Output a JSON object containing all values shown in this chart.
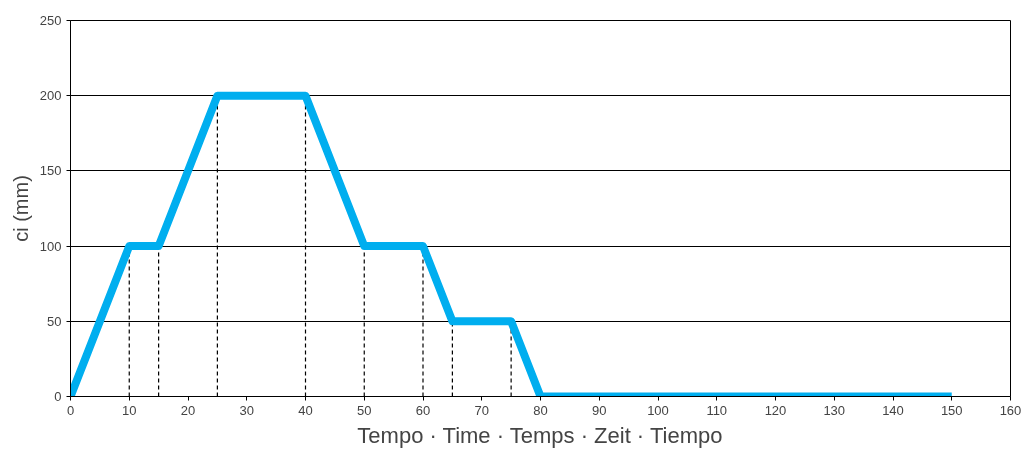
{
  "chart_data": {
    "type": "line",
    "ylabel": "ci (mm)",
    "xlabel": "Tempo · Time · Temps · Zeit · Tiempo",
    "x": [
      0,
      10,
      15,
      25,
      40,
      50,
      60,
      65,
      75,
      80,
      150
    ],
    "series": [
      {
        "color": "#00aeef",
        "values": [
          0,
          100,
          100,
          200,
          200,
          100,
          100,
          50,
          50,
          0,
          0
        ]
      }
    ],
    "xlim": [
      0,
      160
    ],
    "xticks": [
      0,
      10,
      20,
      30,
      40,
      50,
      60,
      70,
      80,
      90,
      100,
      110,
      120,
      130,
      140,
      150,
      160
    ],
    "ylim": [
      0,
      250
    ],
    "yticks": [
      0,
      50,
      100,
      150,
      200,
      250
    ],
    "grid": "y",
    "marker": "none",
    "line_style": "solid",
    "ref_lines": [
      {
        "axis": "x",
        "value": 10,
        "line_style": "dashed",
        "color": "#000000"
      },
      {
        "axis": "x",
        "value": 15,
        "line_style": "dashed",
        "color": "#000000"
      },
      {
        "axis": "x",
        "value": 25,
        "line_style": "dashed",
        "color": "#000000"
      },
      {
        "axis": "x",
        "value": 40,
        "line_style": "dashed",
        "color": "#000000"
      },
      {
        "axis": "x",
        "value": 50,
        "line_style": "dashed",
        "color": "#000000"
      },
      {
        "axis": "x",
        "value": 60,
        "line_style": "dashed",
        "color": "#000000"
      },
      {
        "axis": "x",
        "value": 65,
        "line_style": "dashed",
        "color": "#000000"
      },
      {
        "axis": "x",
        "value": 75,
        "line_style": "dashed",
        "color": "#000000"
      }
    ]
  }
}
